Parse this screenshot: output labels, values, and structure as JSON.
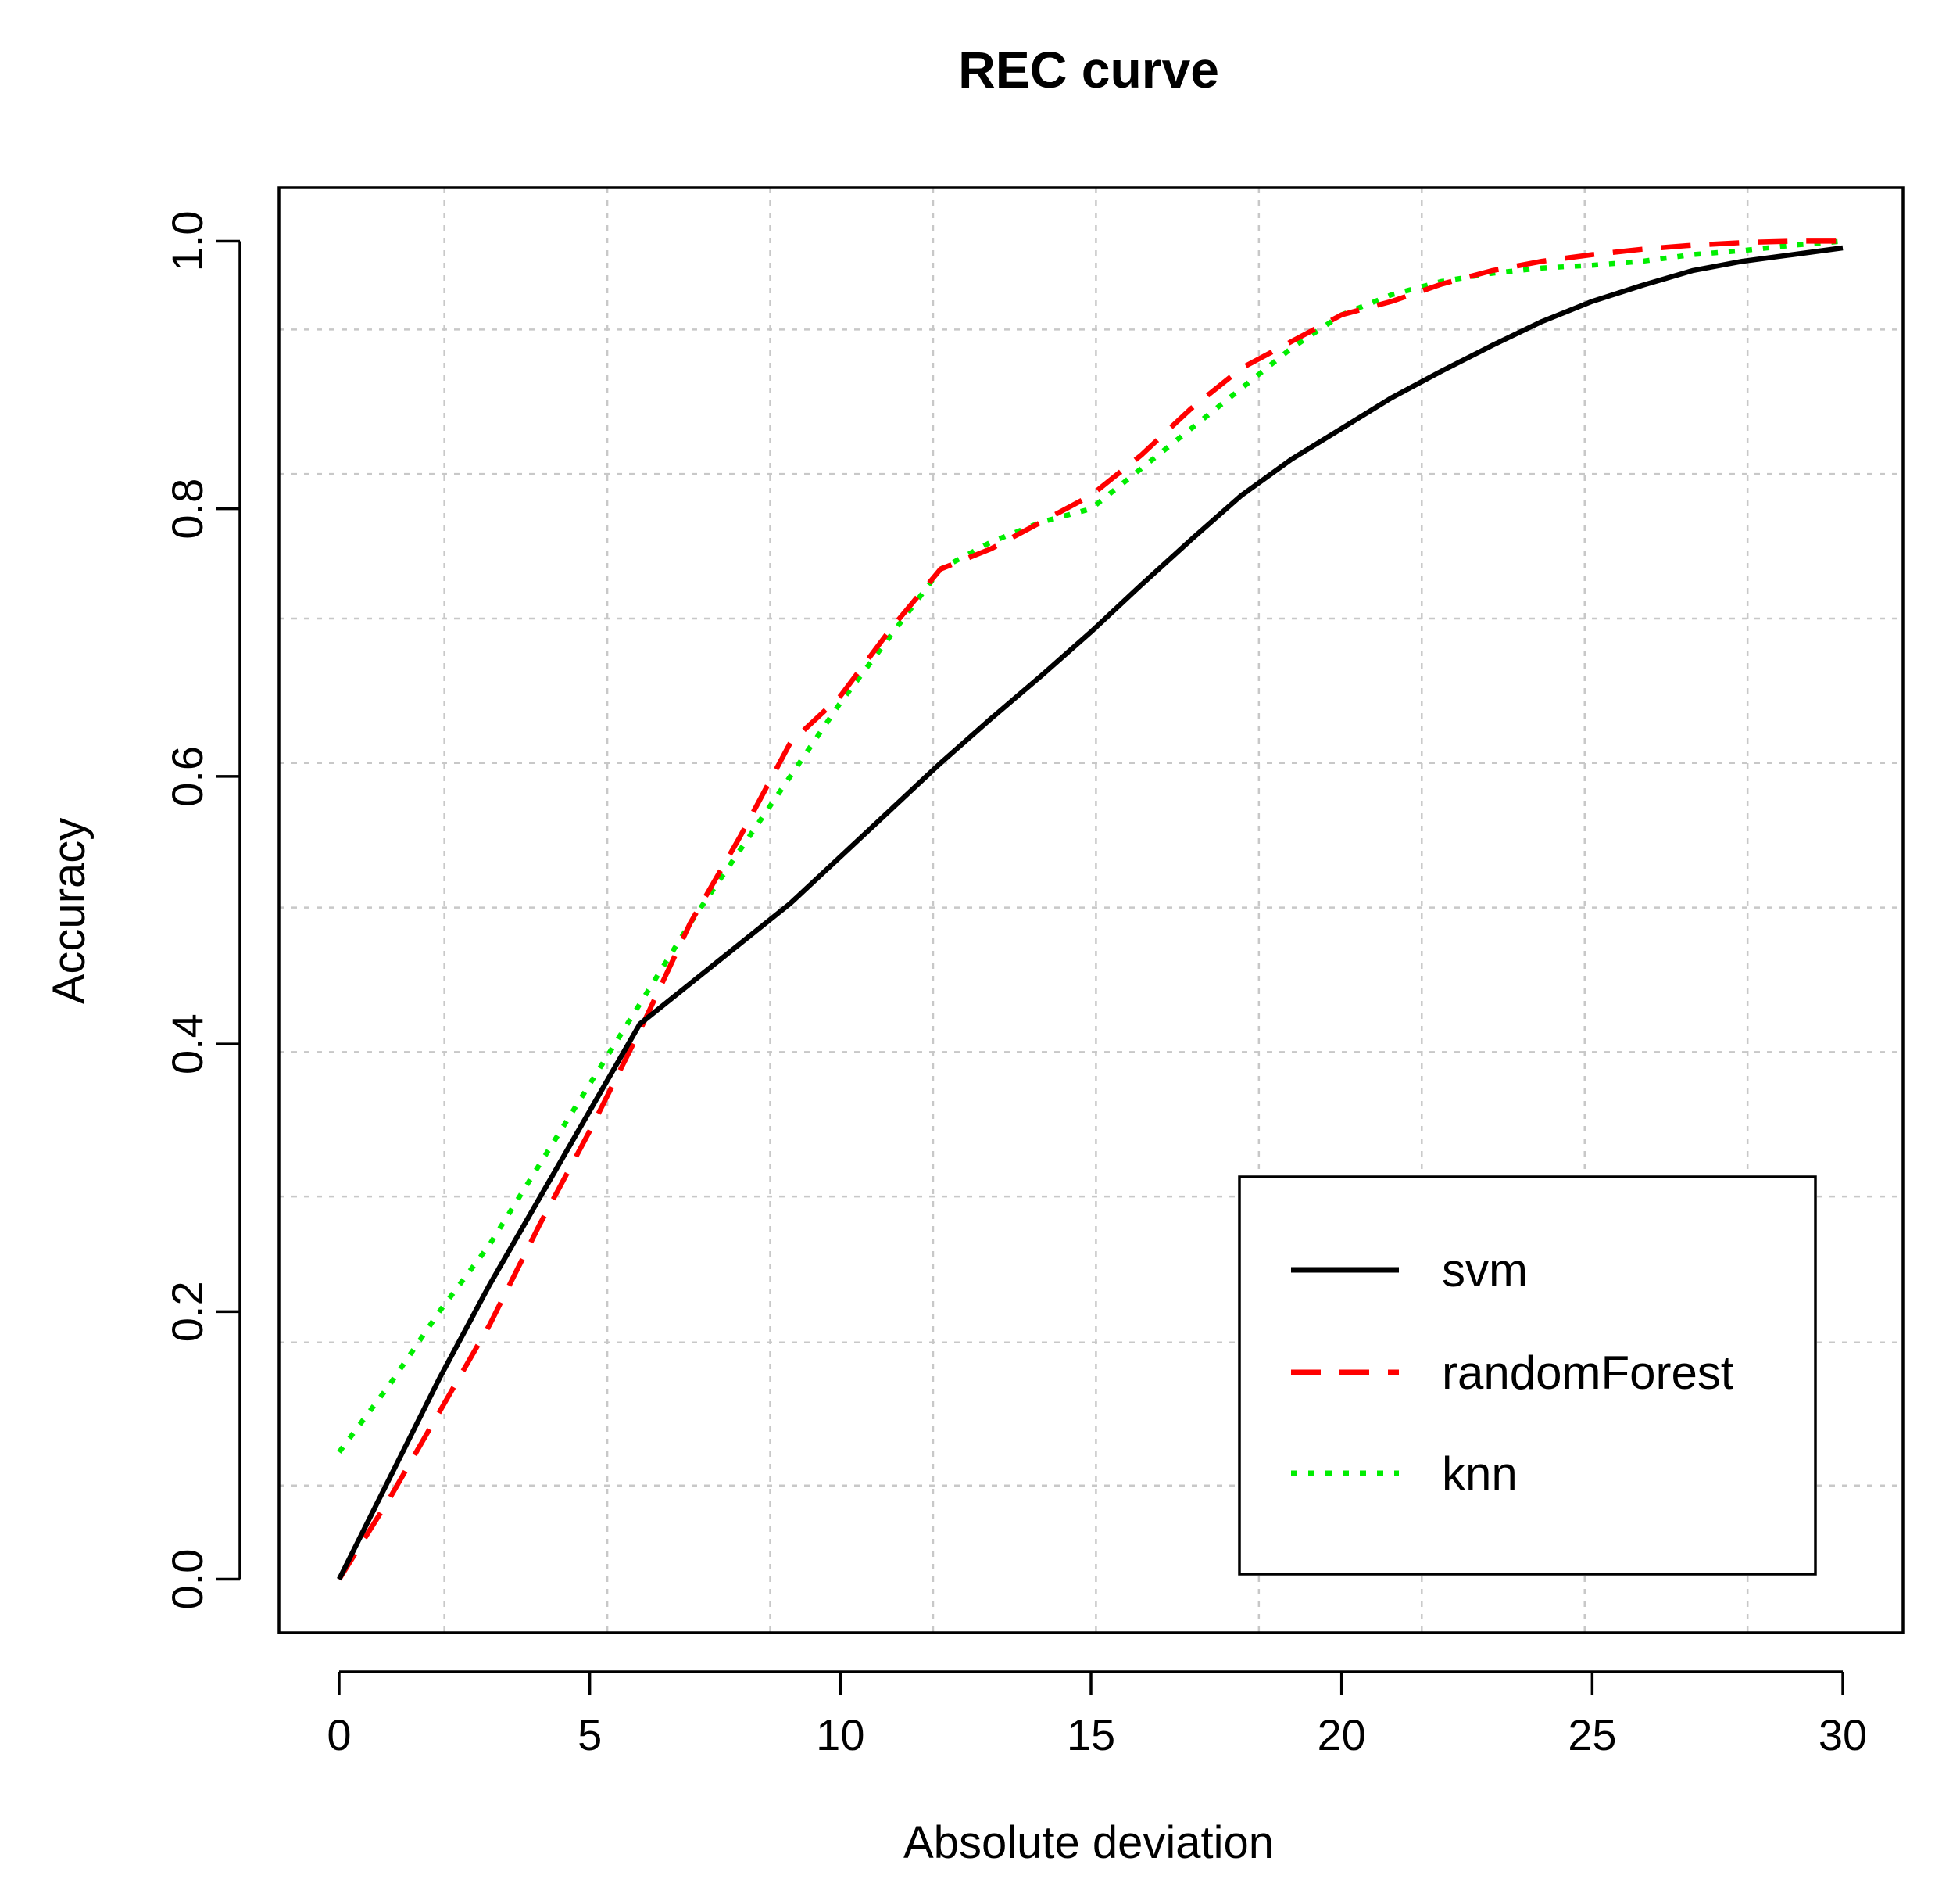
{
  "chart_data": {
    "type": "line",
    "title": "REC curve",
    "xlabel": "Absolute deviation",
    "ylabel": "Accuracy",
    "xlim": [
      -1.2,
      31.2
    ],
    "ylim": [
      -0.04,
      1.04
    ],
    "x_ticks": [
      0,
      5,
      10,
      15,
      20,
      25,
      30
    ],
    "x_tick_labels": [
      "0",
      "5",
      "10",
      "15",
      "20",
      "25",
      "30"
    ],
    "y_ticks": [
      0.0,
      0.2,
      0.4,
      0.6,
      0.8,
      1.0
    ],
    "y_tick_labels": [
      "0.0",
      "0.2",
      "0.4",
      "0.6",
      "0.8",
      "1.0"
    ],
    "grid": true,
    "grid_x": [
      2.1,
      5.35,
      8.6,
      11.85,
      15.1,
      18.35,
      21.6,
      24.85,
      28.1
    ],
    "grid_y": [
      0.07,
      0.177,
      0.286,
      0.394,
      0.502,
      0.61,
      0.718,
      0.826,
      0.934
    ],
    "legend_position": "bottom-right",
    "series": [
      {
        "name": "svm",
        "color": "#000000",
        "style": "solid",
        "x": [
          0,
          1,
          2,
          3,
          4,
          5,
          6,
          7,
          8,
          9,
          10,
          11,
          12,
          13,
          14,
          15,
          16,
          17,
          18,
          19,
          20,
          21,
          22,
          23,
          24,
          25,
          26,
          27,
          28,
          29,
          30
        ],
        "y": [
          0.0,
          0.075,
          0.15,
          0.22,
          0.285,
          0.35,
          0.415,
          0.445,
          0.475,
          0.505,
          0.54,
          0.575,
          0.61,
          0.643,
          0.675,
          0.708,
          0.743,
          0.777,
          0.81,
          0.837,
          0.86,
          0.883,
          0.903,
          0.922,
          0.94,
          0.955,
          0.967,
          0.978,
          0.985,
          0.99,
          0.995
        ]
      },
      {
        "name": "randomForest",
        "color": "#ff0000",
        "style": "dashed",
        "x": [
          0,
          1,
          2,
          3,
          4,
          5,
          6,
          7,
          8,
          9,
          10,
          11,
          12,
          13,
          14,
          15,
          16,
          17,
          18,
          19,
          20,
          21,
          22,
          23,
          24,
          25,
          26,
          27,
          28,
          29,
          30
        ],
        "y": [
          0.0,
          0.06,
          0.125,
          0.19,
          0.265,
          0.335,
          0.41,
          0.49,
          0.555,
          0.625,
          0.66,
          0.71,
          0.755,
          0.77,
          0.79,
          0.81,
          0.84,
          0.875,
          0.905,
          0.925,
          0.945,
          0.955,
          0.968,
          0.978,
          0.985,
          0.99,
          0.994,
          0.997,
          0.999,
          1.0,
          1.0
        ]
      },
      {
        "name": "knn",
        "color": "#00ee00",
        "style": "dotted",
        "x": [
          0,
          1,
          2,
          3,
          4,
          5,
          6,
          7,
          8,
          9,
          10,
          11,
          12,
          13,
          14,
          15,
          16,
          17,
          18,
          19,
          20,
          21,
          22,
          23,
          24,
          25,
          26,
          27,
          28,
          29,
          30
        ],
        "y": [
          0.095,
          0.145,
          0.2,
          0.25,
          0.31,
          0.37,
          0.43,
          0.49,
          0.545,
          0.6,
          0.655,
          0.705,
          0.755,
          0.775,
          0.79,
          0.8,
          0.83,
          0.86,
          0.89,
          0.92,
          0.945,
          0.96,
          0.97,
          0.976,
          0.98,
          0.982,
          0.985,
          0.99,
          0.993,
          0.997,
          1.0
        ]
      }
    ]
  }
}
